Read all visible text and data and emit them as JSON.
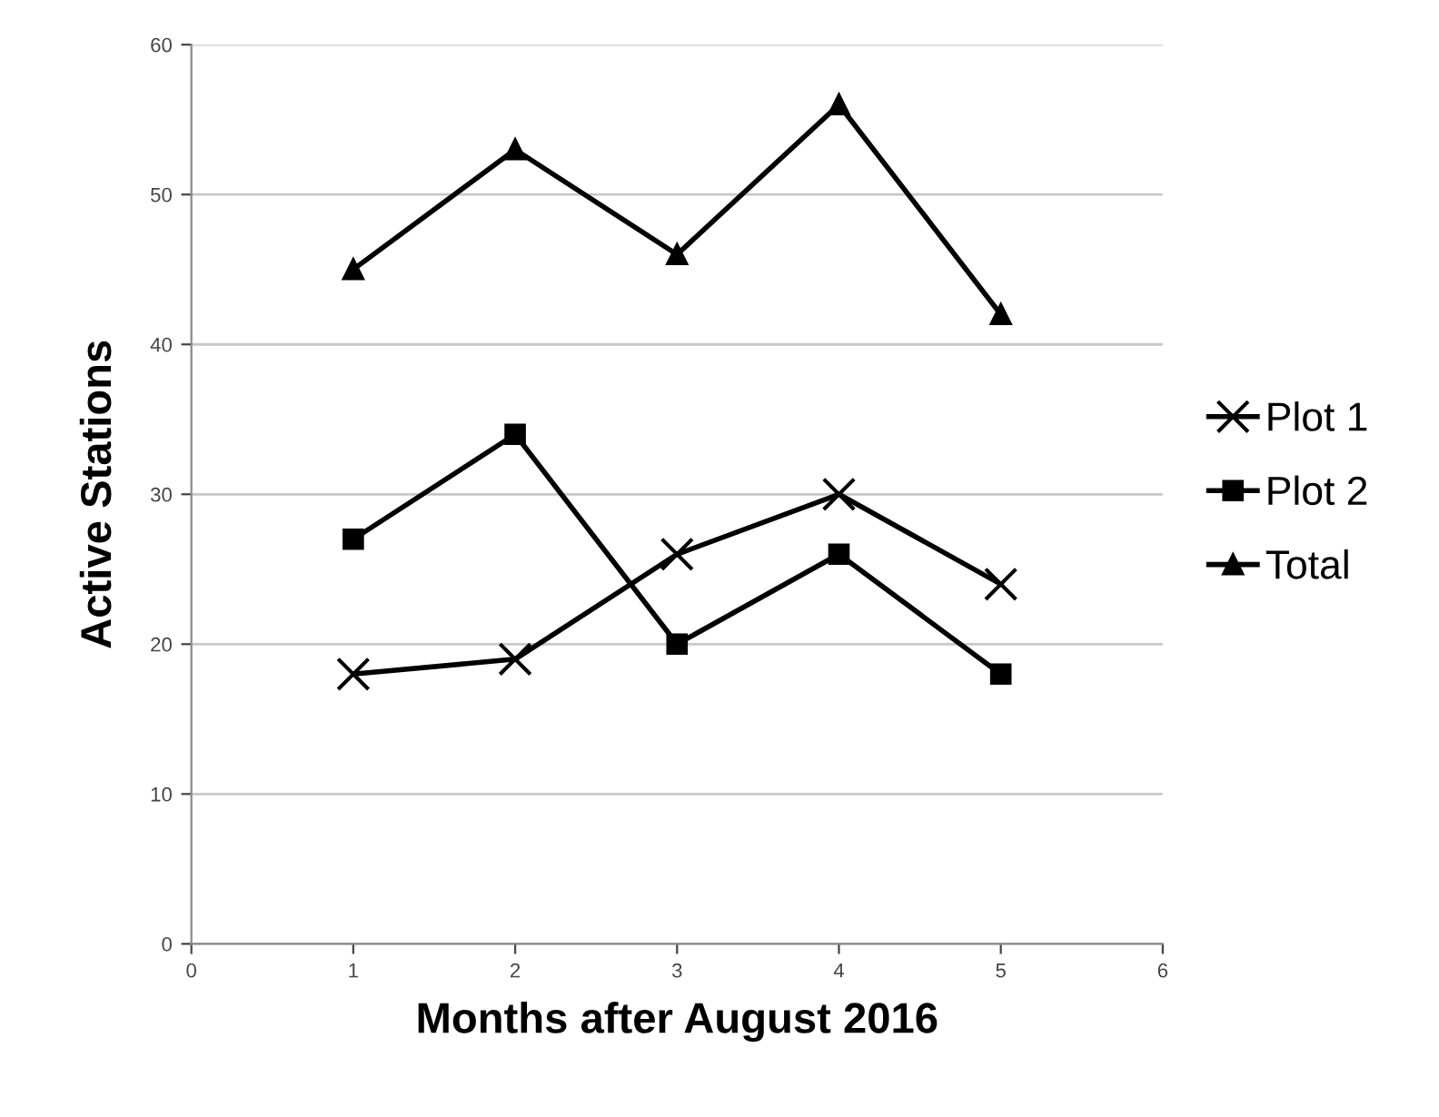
{
  "chart_data": {
    "type": "line",
    "xlabel": "Months after August 2016",
    "ylabel": "Active Stations",
    "x": [
      1,
      2,
      3,
      4,
      5
    ],
    "series": [
      {
        "name": "Plot 1",
        "color": "#000000",
        "marker": "cross",
        "values": [
          18,
          19,
          26,
          30,
          24
        ]
      },
      {
        "name": "Plot 2",
        "color": "#000000",
        "marker": "square",
        "values": [
          27,
          34,
          20,
          26,
          18
        ]
      },
      {
        "name": "Total",
        "color": "#000000",
        "marker": "triangle",
        "values": [
          45,
          53,
          46,
          56,
          42
        ]
      }
    ],
    "xlim": [
      0,
      6
    ],
    "xticks": [
      0,
      1,
      2,
      3,
      4,
      5,
      6
    ],
    "ylim": [
      0,
      60
    ],
    "yticks": [
      0,
      10,
      20,
      30,
      40,
      50,
      60
    ],
    "grid": "y",
    "legend": "right",
    "line_style": "solid"
  }
}
